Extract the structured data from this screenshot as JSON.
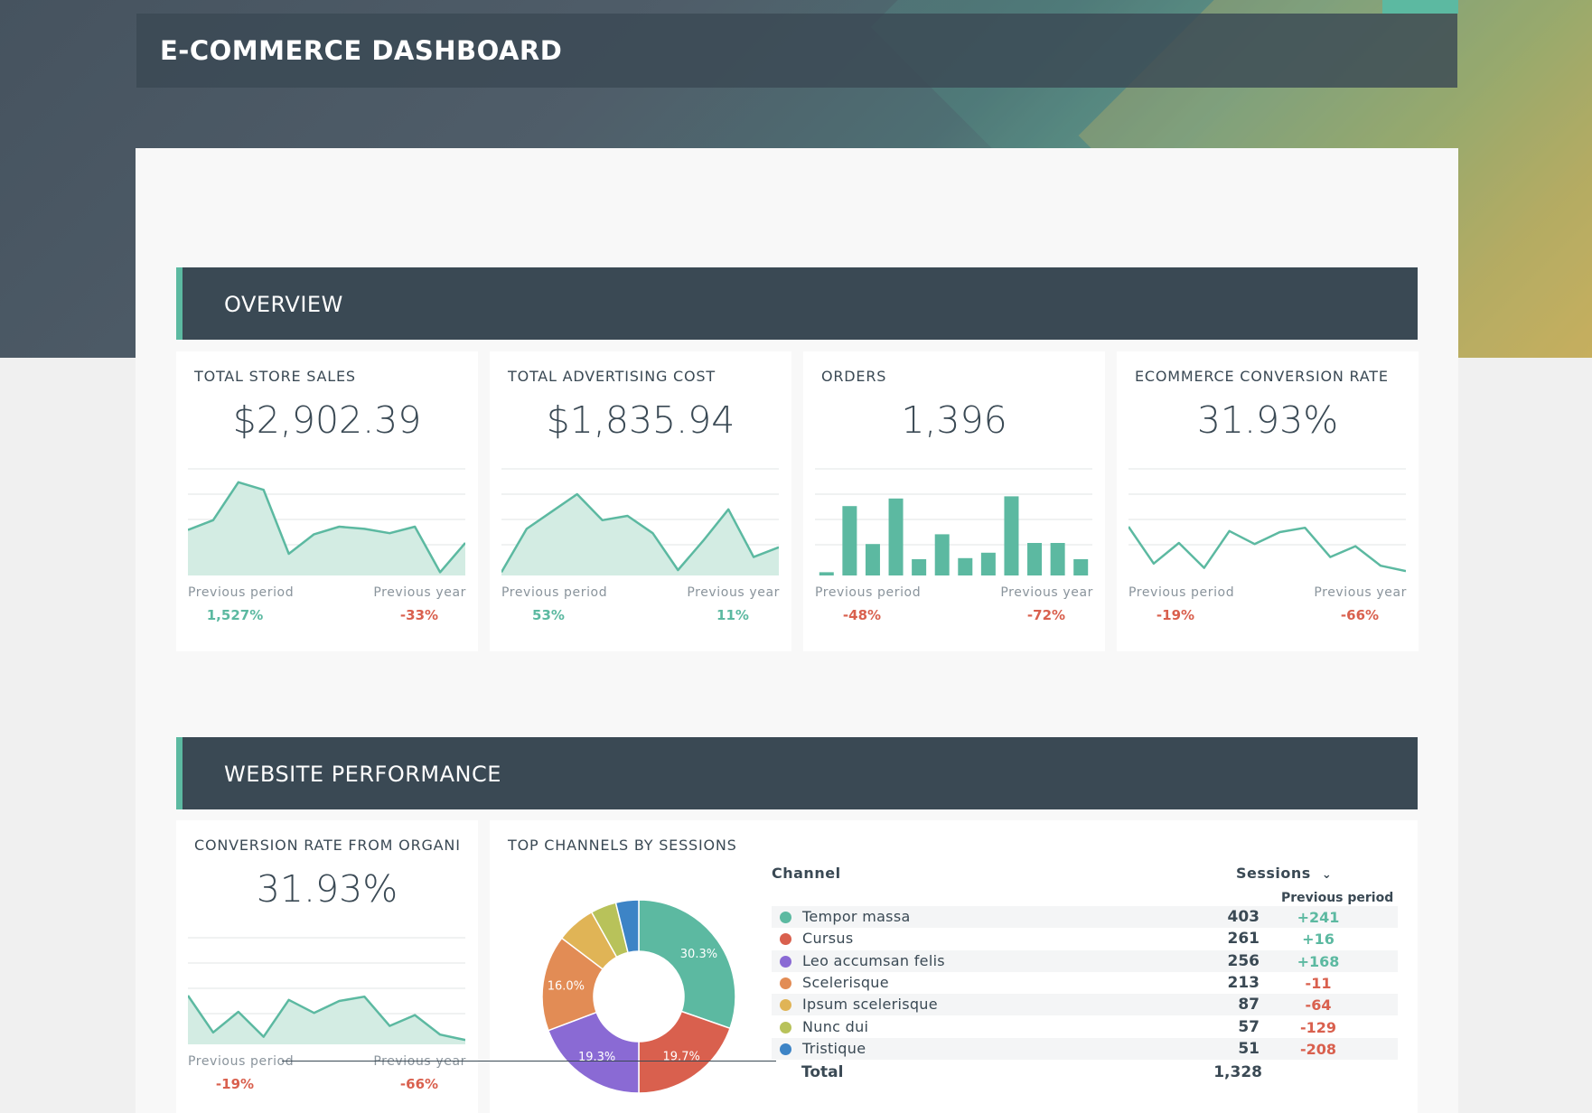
{
  "header": {
    "title": "E-COMMERCE DASHBOARD"
  },
  "colors": {
    "accent": "#5cb9a1",
    "negative": "#d9604e",
    "dark": "#3a4954"
  },
  "sections": {
    "overview": "OVERVIEW",
    "website": "WEBSITE PERFORMANCE"
  },
  "kpis": [
    {
      "title": "TOTAL STORE SALES",
      "value": "$2,902.39",
      "prev_label": "Previous period",
      "prev_value": "1,527%",
      "year_label": "Previous year",
      "year_value": "-33%",
      "chart": "area",
      "series": [
        42,
        51,
        86,
        79,
        20,
        38,
        45,
        43,
        39,
        45,
        3,
        30
      ]
    },
    {
      "title": "TOTAL ADVERTISING COST",
      "value": "$1,835.94",
      "prev_label": "Previous period",
      "prev_value": "53%",
      "year_label": "Previous year",
      "year_value": "11%",
      "chart": "area",
      "series": [
        3,
        43,
        59,
        75,
        51,
        55,
        39,
        5,
        32,
        61,
        17,
        26
      ]
    },
    {
      "title": "ORDERS",
      "value": "1,396",
      "prev_label": "Previous period",
      "prev_value": "-48%",
      "year_label": "Previous year",
      "year_value": "-72%",
      "chart": "bar",
      "series": [
        3,
        64,
        29,
        71,
        15,
        38,
        16,
        21,
        73,
        30,
        30,
        15
      ]
    },
    {
      "title": "ECOMMERCE CONVERSION RATE",
      "value": "31.93%",
      "prev_label": "Previous period",
      "prev_value": "-19%",
      "year_label": "Previous year",
      "year_value": "-66%",
      "chart": "line",
      "series": [
        45,
        11,
        30,
        7,
        41,
        29,
        40,
        44,
        17,
        27,
        9,
        4
      ]
    }
  ],
  "organic": {
    "title": "CONVERSION RATE FROM ORGANI",
    "value": "31.93%",
    "prev_label": "Previous period",
    "prev_value": "-19%",
    "year_label": "Previous year",
    "year_value": "-66%",
    "series": [
      45,
      11,
      30,
      7,
      41,
      29,
      40,
      44,
      17,
      27,
      9,
      4
    ]
  },
  "channels": {
    "title": "TOP CHANNELS BY SESSIONS",
    "col_channel": "Channel",
    "col_sessions": "Sessions",
    "col_previous": "Previous period",
    "rows": [
      {
        "name": "Tempor massa",
        "sessions": "403",
        "prev": "+241",
        "color": "#5cb9a1"
      },
      {
        "name": "Cursus",
        "sessions": "261",
        "prev": "+16",
        "color": "#d9604e"
      },
      {
        "name": "Leo accumsan felis",
        "sessions": "256",
        "prev": "+168",
        "color": "#8a6ad4"
      },
      {
        "name": "Scelerisque",
        "sessions": "213",
        "prev": "-11",
        "color": "#e28c55"
      },
      {
        "name": "Ipsum scelerisque",
        "sessions": "87",
        "prev": "-64",
        "color": "#e0b456"
      },
      {
        "name": "Nunc dui",
        "sessions": "57",
        "prev": "-129",
        "color": "#b8c25a"
      },
      {
        "name": "Tristique",
        "sessions": "51",
        "prev": "-208",
        "color": "#3d84c6"
      }
    ],
    "total_label": "Total",
    "total_value": "1,328"
  },
  "chart_data": {
    "type": "pie",
    "title": "TOP CHANNELS BY SESSIONS",
    "categories": [
      "Tempor massa",
      "Cursus",
      "Leo accumsan felis",
      "Scelerisque",
      "Ipsum scelerisque",
      "Nunc dui",
      "Tristique"
    ],
    "values": [
      403,
      261,
      256,
      213,
      87,
      57,
      51
    ],
    "labels": [
      "30.3%",
      "19.7%",
      "19.3%",
      "16.0%",
      "",
      "",
      ""
    ]
  }
}
